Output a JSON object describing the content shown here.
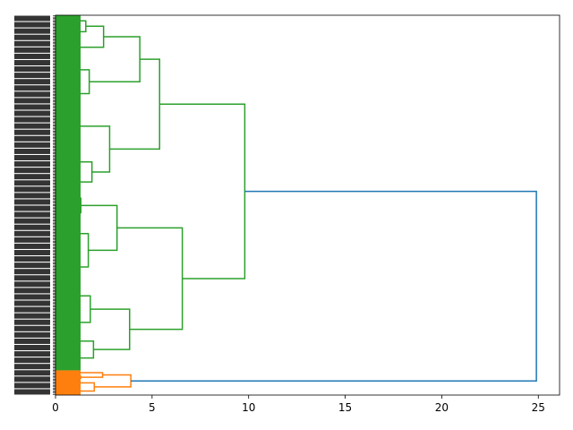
{
  "chart_data": {
    "type": "dendrogram",
    "orientation": "horizontal",
    "title": "",
    "xlabel": "",
    "ylabel": "",
    "xlim": [
      0,
      26.1
    ],
    "xticks": [
      0,
      5,
      10,
      15,
      20,
      25
    ],
    "xtick_labels": [
      "0",
      "5",
      "10",
      "15",
      "20",
      "25"
    ],
    "colors": {
      "above_threshold": "#1f77b4",
      "cluster_green": "#2ca02c",
      "cluster_orange": "#ff7f0e",
      "axes": "#000000"
    },
    "clusters": [
      {
        "color": "cluster_green",
        "leaf_share": 0.935,
        "merge_height": 10.0
      },
      {
        "color": "cluster_orange",
        "leaf_share": 0.065,
        "merge_height": 3.9
      }
    ],
    "top_merge_height": 24.9,
    "main_merges": [
      {
        "height": 9.8,
        "top_frac": 0.4,
        "bottom_frac": 0.52
      },
      {
        "height": 6.0,
        "top_frac": 0.66,
        "bottom_frac": 0.37
      },
      {
        "height": 4.6,
        "top_frac": 0.42,
        "bottom_frac": 0.25
      },
      {
        "height": 3.8,
        "top_frac": 0.48,
        "bottom_frac": 0.22
      },
      {
        "height": 3.6,
        "top_frac": 0.55,
        "bottom_frac": 0.37
      },
      {
        "height": 2.7,
        "top_frac": 0.62,
        "bottom_frac": 0.3
      },
      {
        "height": 6.9,
        "top_frac": 0.4,
        "bottom_frac": 0.62
      },
      {
        "height": 6.0,
        "top_frac": 0.42,
        "bottom_frac": 0.35
      },
      {
        "height": 4.5,
        "top_frac": 0.45,
        "bottom_frac": 0.3
      },
      {
        "height": 5.6,
        "top_frac": 0.45,
        "bottom_frac": 0.4
      },
      {
        "height": 5.3,
        "top_frac": 0.5,
        "bottom_frac": 0.3
      }
    ],
    "leaf_count": 300
  }
}
